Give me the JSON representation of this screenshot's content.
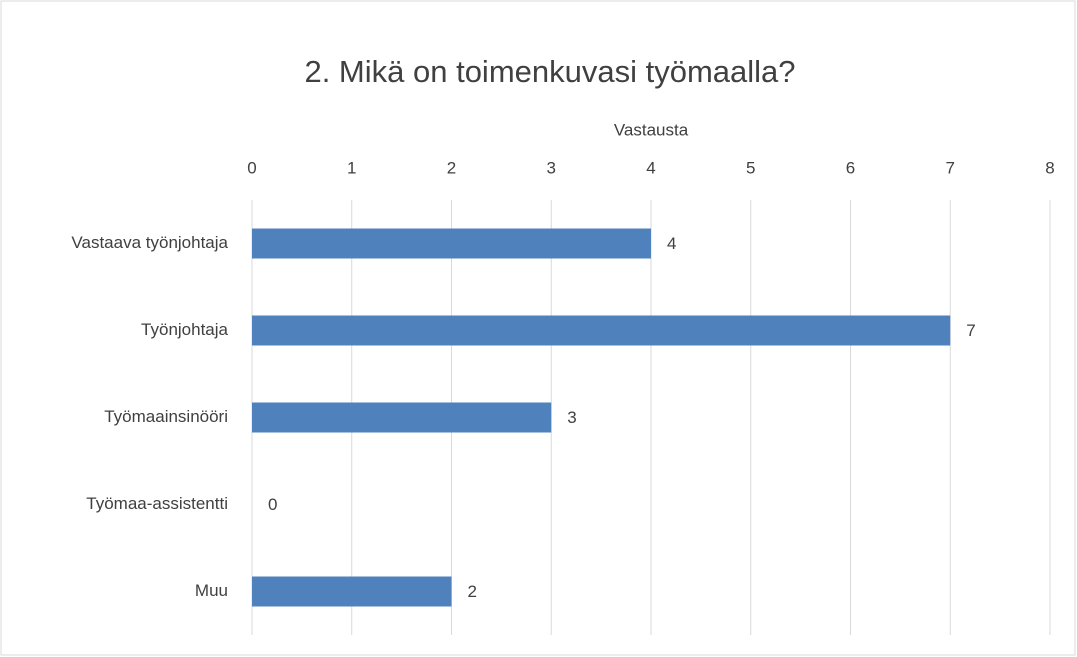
{
  "chart_data": {
    "type": "bar",
    "orientation": "horizontal",
    "title": "2. Mikä on toimenkuvasi työmaalla?",
    "xlabel": "Vastausta",
    "xaxis_position": "top",
    "categories": [
      "Vastaava työnjohtaja",
      "Työnjohtaja",
      "Työmaainsinööri",
      "Työmaa-assistentti",
      "Muu"
    ],
    "values": [
      4,
      7,
      3,
      0,
      2
    ],
    "color": "#4f81bd",
    "xlim": [
      0,
      8
    ],
    "xticks": [
      0,
      1,
      2,
      3,
      4,
      5,
      6,
      7,
      8
    ],
    "grid": true,
    "data_labels": true
  }
}
